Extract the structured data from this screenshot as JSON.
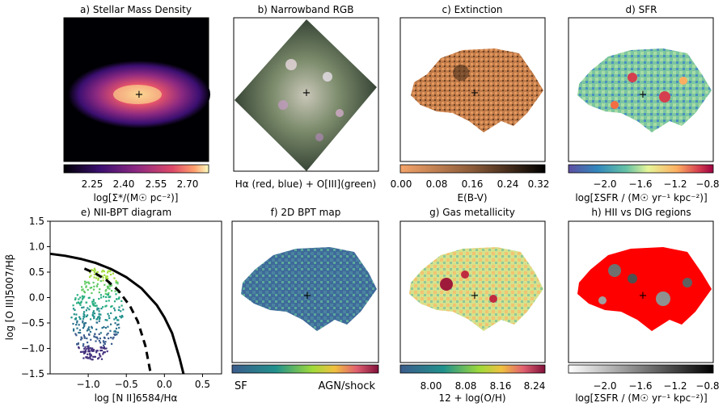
{
  "figure": {
    "panels": {
      "a": {
        "title": "a) Stellar Mass Density",
        "colorbar_label": "log[Σ*/(M☉ pc⁻²)]",
        "ticks": [
          "2.25",
          "2.40",
          "2.55",
          "2.70"
        ]
      },
      "b": {
        "title": "b) Narrowband RGB",
        "caption": "Hα (red, blue) + O[III](green)"
      },
      "c": {
        "title": "c) Extinction",
        "colorbar_label": "E(B-V)",
        "ticks": [
          "0.00",
          "0.08",
          "0.16",
          "0.24",
          "0.32"
        ]
      },
      "d": {
        "title": "d) SFR",
        "colorbar_label": "log[ΣSFR / (M☉ yr⁻¹ kpc⁻²)]",
        "ticks": [
          "−2.0",
          "−1.6",
          "−1.2",
          "−0.8"
        ]
      },
      "e": {
        "title": "e) NII-BPT diagram"
      },
      "f": {
        "title": "f) 2D BPT map",
        "left_label": "SF",
        "right_label": "AGN/shock"
      },
      "g": {
        "title": "g) Gas metallicity",
        "colorbar_label": "12 + log(O/H)",
        "ticks": [
          "8.00",
          "8.08",
          "8.16",
          "8.24"
        ]
      },
      "h": {
        "title": "h) HII vs DIG regions",
        "colorbar_label": "log[ΣSFR / (M☉ yr⁻¹ kpc⁻²)]",
        "ticks": [
          "−2.0",
          "−1.6",
          "−1.2",
          "−0.8"
        ]
      }
    },
    "colors": {
      "magma_top": "#fcfdbf",
      "copper_low": "#f4a46a",
      "red_dig": "#ff0000",
      "curve": "#000000"
    }
  },
  "chart_data": [
    {
      "type": "scatter",
      "title": "e) NII-BPT diagram",
      "xlabel": "log [N II]6584/Hα",
      "ylabel": "log [O III]5007/Hβ",
      "xlim": [
        -1.5,
        0.75
      ],
      "ylim": [
        -1.5,
        1.5
      ],
      "xticks": [
        -1.0,
        -0.5,
        0.0,
        0.5
      ],
      "xtick_labels": [
        "−1.0",
        "−0.5",
        "0.0",
        "0.5"
      ],
      "yticks": [
        1.5,
        1.0,
        0.5,
        0.0,
        -0.5,
        -1.0,
        -1.5
      ],
      "ytick_labels": [
        "1.5",
        "1.0",
        "0.5",
        "0.0",
        "−0.5",
        "−1.0",
        "−1.5"
      ],
      "series": [
        {
          "style": "solid",
          "x": [
            -1.5,
            -1.3,
            -1.1,
            -0.9,
            -0.7,
            -0.5,
            -0.3,
            -0.1,
            0.0,
            0.1,
            0.2,
            0.25
          ],
          "y": [
            0.86,
            0.82,
            0.76,
            0.68,
            0.56,
            0.4,
            0.18,
            -0.15,
            -0.39,
            -0.7,
            -1.2,
            -1.5
          ]
        },
        {
          "style": "dashed",
          "x": [
            -1.05,
            -0.9,
            -0.75,
            -0.6,
            -0.45,
            -0.35,
            -0.25,
            -0.18
          ],
          "y": [
            0.57,
            0.47,
            0.33,
            0.13,
            -0.17,
            -0.47,
            -0.95,
            -1.5
          ]
        }
      ],
      "cloud": {
        "x_range": [
          -1.25,
          -0.45
        ],
        "y_range": [
          -1.2,
          0.6
        ]
      }
    }
  ]
}
